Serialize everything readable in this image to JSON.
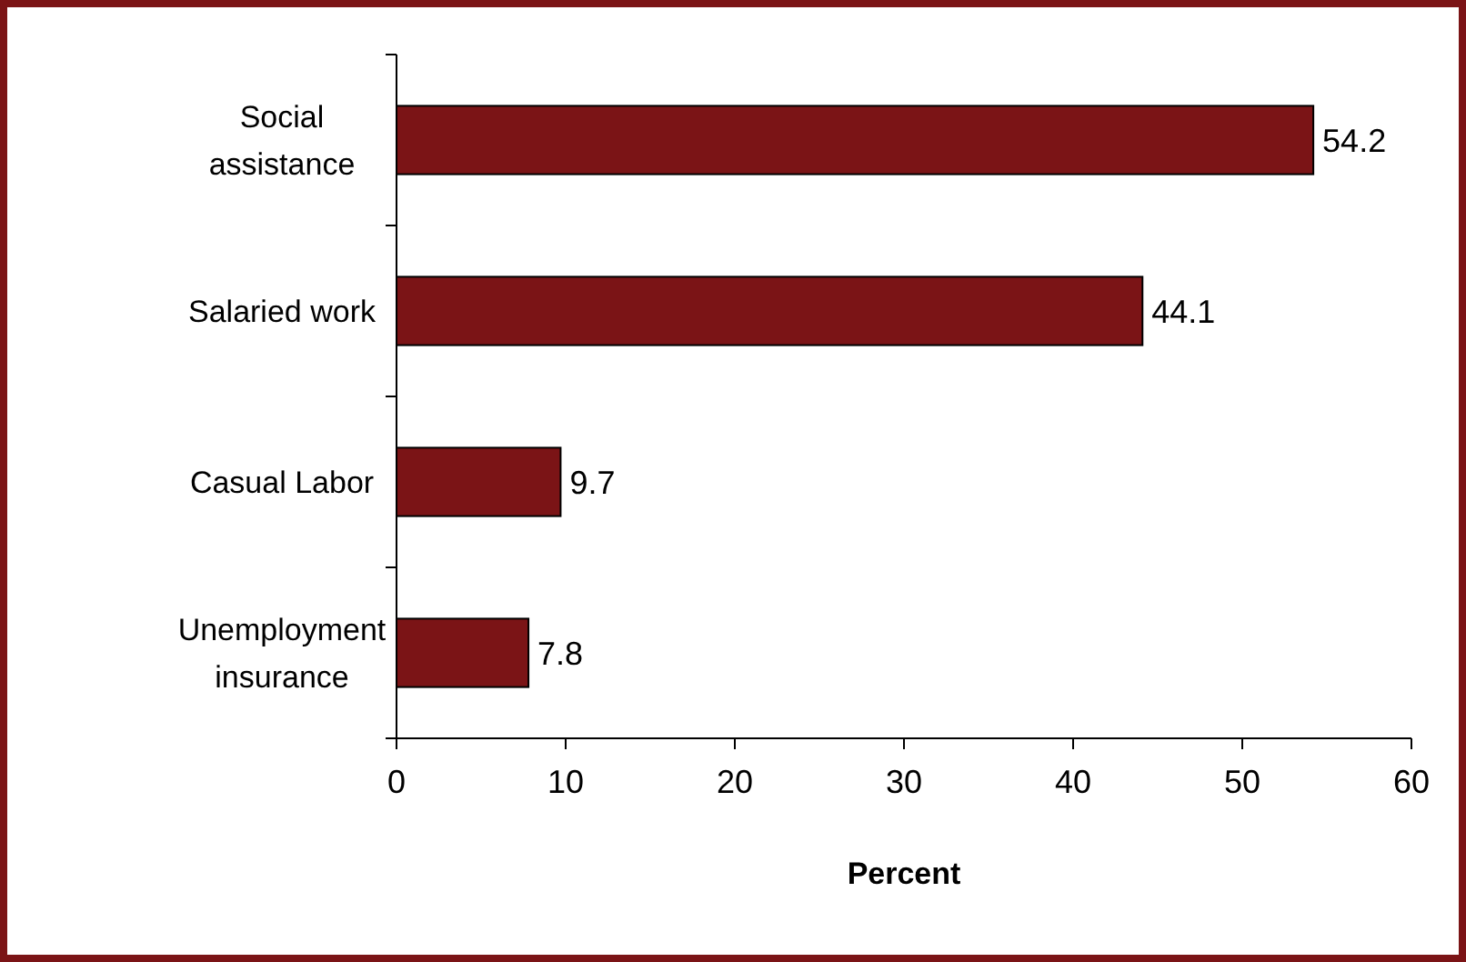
{
  "chart_data": {
    "type": "bar",
    "orientation": "horizontal",
    "xlabel": "Percent",
    "categories": [
      "Social assistance",
      "Salaried work",
      "Casual Labor",
      "Unemployment insurance"
    ],
    "values": [
      54.2,
      44.1,
      9.7,
      7.8
    ],
    "color": "#7b1416",
    "xlim": [
      0,
      60
    ],
    "xticks": [
      0,
      10,
      20,
      30,
      40,
      50,
      60
    ],
    "data_labels": true,
    "grid": false
  }
}
